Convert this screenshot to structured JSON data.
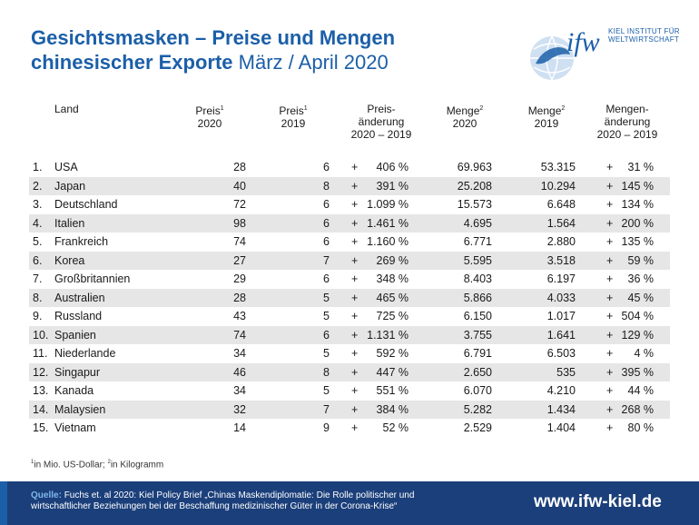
{
  "title": {
    "bold": "Gesichtsmasken – Preise und Mengen chinesischer Exporte",
    "rest": "März / April 2020"
  },
  "logo": {
    "text": "ifw",
    "sub1": "KIEL INSTITUT FÜR",
    "sub2": "WELTWIRTSCHAFT"
  },
  "colors": {
    "brand": "#1b5fa8",
    "footer": "#1b3f7a",
    "stripe": "#e6e6e6"
  },
  "chart_data": {
    "type": "table",
    "columns": [
      {
        "key": "land",
        "label": "Land"
      },
      {
        "key": "preis2020",
        "label1": "Preis",
        "sup": "1",
        "label2": "2020"
      },
      {
        "key": "preis2019",
        "label1": "Preis",
        "sup": "1",
        "label2": "2019"
      },
      {
        "key": "preisaend",
        "label1": "Preis-",
        "label2": "änderung",
        "label3": "2020 – 2019"
      },
      {
        "key": "menge2020",
        "label1": "Menge",
        "sup": "2",
        "label2": "2020"
      },
      {
        "key": "menge2019",
        "label1": "Menge",
        "sup": "2",
        "label2": "2019"
      },
      {
        "key": "mengeaend",
        "label1": "Mengen-",
        "label2": "änderung",
        "label3": "2020 – 2019"
      }
    ],
    "rows": [
      {
        "rank": "1.",
        "land": "USA",
        "preis2020": "28",
        "preis2019": "6",
        "preisaend": "406 %",
        "menge2020": "69.963",
        "menge2019": "53.315",
        "mengeaend": "31 %"
      },
      {
        "rank": "2.",
        "land": "Japan",
        "preis2020": "40",
        "preis2019": "8",
        "preisaend": "391 %",
        "menge2020": "25.208",
        "menge2019": "10.294",
        "mengeaend": "145 %"
      },
      {
        "rank": "3.",
        "land": "Deutschland",
        "preis2020": "72",
        "preis2019": "6",
        "preisaend": "1.099 %",
        "menge2020": "15.573",
        "menge2019": "6.648",
        "mengeaend": "134 %"
      },
      {
        "rank": "4.",
        "land": "Italien",
        "preis2020": "98",
        "preis2019": "6",
        "preisaend": "1.461 %",
        "menge2020": "4.695",
        "menge2019": "1.564",
        "mengeaend": "200 %"
      },
      {
        "rank": "5.",
        "land": "Frankreich",
        "preis2020": "74",
        "preis2019": "6",
        "preisaend": "1.160 %",
        "menge2020": "6.771",
        "menge2019": "2.880",
        "mengeaend": "135 %"
      },
      {
        "rank": "6.",
        "land": "Korea",
        "preis2020": "27",
        "preis2019": "7",
        "preisaend": "269 %",
        "menge2020": "5.595",
        "menge2019": "3.518",
        "mengeaend": "59 %"
      },
      {
        "rank": "7.",
        "land": "Großbritannien",
        "preis2020": "29",
        "preis2019": "6",
        "preisaend": "348 %",
        "menge2020": "8.403",
        "menge2019": "6.197",
        "mengeaend": "36 %"
      },
      {
        "rank": "8.",
        "land": "Australien",
        "preis2020": "28",
        "preis2019": "5",
        "preisaend": "465 %",
        "menge2020": "5.866",
        "menge2019": "4.033",
        "mengeaend": "45 %"
      },
      {
        "rank": "9.",
        "land": "Russland",
        "preis2020": "43",
        "preis2019": "5",
        "preisaend": "725 %",
        "menge2020": "6.150",
        "menge2019": "1.017",
        "mengeaend": "504 %"
      },
      {
        "rank": "10.",
        "land": "Spanien",
        "preis2020": "74",
        "preis2019": "6",
        "preisaend": "1.131 %",
        "menge2020": "3.755",
        "menge2019": "1.641",
        "mengeaend": "129 %"
      },
      {
        "rank": "11.",
        "land": "Niederlande",
        "preis2020": "34",
        "preis2019": "5",
        "preisaend": "592 %",
        "menge2020": "6.791",
        "menge2019": "6.503",
        "mengeaend": "4 %"
      },
      {
        "rank": "12.",
        "land": "Singapur",
        "preis2020": "46",
        "preis2019": "8",
        "preisaend": "447 %",
        "menge2020": "2.650",
        "menge2019": "535",
        "mengeaend": "395 %"
      },
      {
        "rank": "13.",
        "land": "Kanada",
        "preis2020": "34",
        "preis2019": "5",
        "preisaend": "551 %",
        "menge2020": "6.070",
        "menge2019": "4.210",
        "mengeaend": "44 %"
      },
      {
        "rank": "14.",
        "land": "Malaysien",
        "preis2020": "32",
        "preis2019": "7",
        "preisaend": "384 %",
        "menge2020": "5.282",
        "menge2019": "1.434",
        "mengeaend": "268 %"
      },
      {
        "rank": "15.",
        "land": "Vietnam",
        "preis2020": "14",
        "preis2019": "9",
        "preisaend": "52 %",
        "menge2020": "2.529",
        "menge2019": "1.404",
        "mengeaend": "80 %"
      }
    ],
    "sign": "+"
  },
  "footnote": {
    "sup1": "1",
    "text1": "in Mio. US-Dollar; ",
    "sup2": "2",
    "text2": "in Kilogramm"
  },
  "footer": {
    "source_label": "Quelle:",
    "source_text": "Fuchs et. al 2020: Kiel Policy Brief „Chinas Maskendiplomatie: Die Rolle politischer und wirtschaftlicher Beziehungen bei der Beschaffung medizinischer Güter in der Corona-Krise“",
    "url": "www.ifw-kiel.de"
  }
}
